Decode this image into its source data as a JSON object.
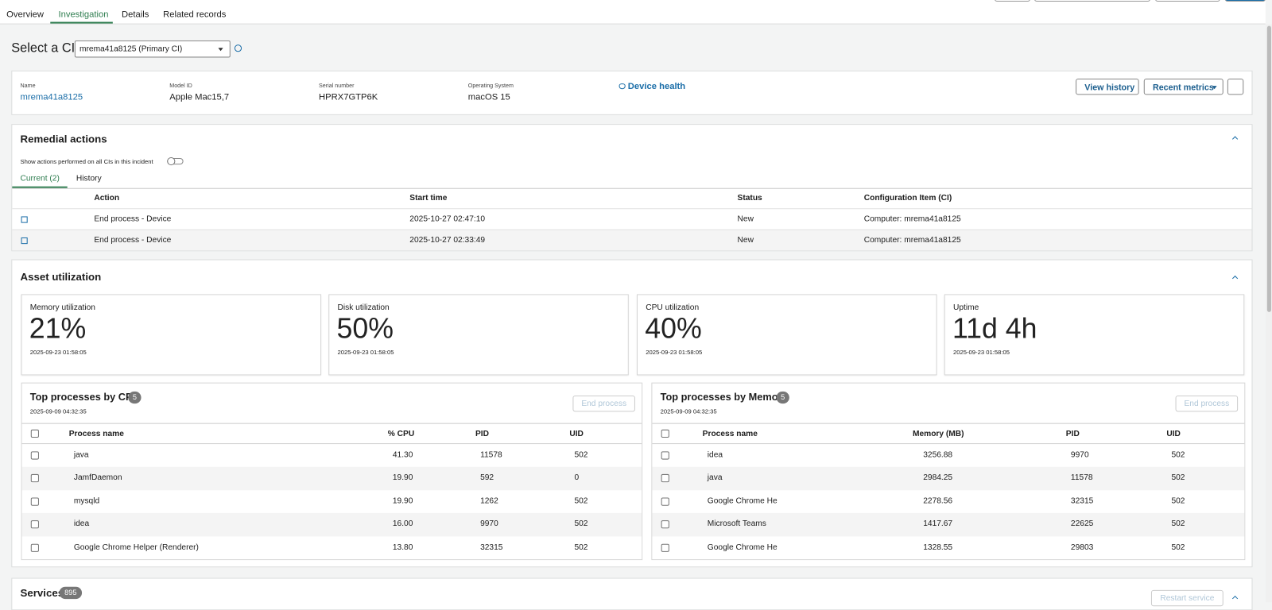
{
  "tabs": [
    "Overview",
    "Investigation",
    "Details",
    "Related records"
  ],
  "ci_select": {
    "label": "Select a CI",
    "value": "mrema41a8125 (Primary CI)"
  },
  "device": {
    "fields": [
      {
        "label": "Name",
        "value": "mrema41a8125"
      },
      {
        "label": "Model ID",
        "value": "Apple Mac15,7"
      },
      {
        "label": "Serial number",
        "value": "HPRX7GTP6K"
      },
      {
        "label": "Operating System",
        "value": "macOS 15"
      }
    ],
    "health_link": "Device health",
    "buttons": [
      "View history",
      "Recent metrics"
    ]
  },
  "remedial_actions": {
    "title": "Remedial actions",
    "toggle_label": "Show actions performed on all CIs in this incident",
    "tabs": [
      "Current (2)",
      "History"
    ],
    "columns": [
      "Action",
      "Start time",
      "Status",
      "Configuration Item (CI)"
    ],
    "rows": [
      [
        "End process - Device",
        "2025-10-27 02:47:10",
        "New",
        "Computer: mrema41a8125"
      ],
      [
        "End process - Device",
        "2025-10-27 02:33:49",
        "New",
        "Computer: mrema41a8125"
      ]
    ]
  },
  "asset_utilization": {
    "title": "Asset utilization",
    "cards": [
      {
        "label": "Memory utilization",
        "value": "21%",
        "time": "2025-09-23 01:58:05"
      },
      {
        "label": "Disk utilization",
        "value": "50%",
        "time": "2025-09-23 01:58:05"
      },
      {
        "label": "CPU utilization",
        "value": "40%",
        "time": "2025-09-23 01:58:05"
      },
      {
        "label": "Uptime",
        "value": "11d 4h",
        "time": "2025-09-23 01:58:05"
      }
    ]
  },
  "top_cpu": {
    "title": "Top processes by CPU",
    "count": "5",
    "date": "2025-09-09 04:32:35",
    "button": "End process",
    "columns": [
      "Process name",
      "% CPU",
      "PID",
      "UID"
    ],
    "rows": [
      [
        "java",
        "41.30",
        "11578",
        "502"
      ],
      [
        "JamfDaemon",
        "19.90",
        "592",
        "0"
      ],
      [
        "mysqld",
        "19.90",
        "1262",
        "502"
      ],
      [
        "idea",
        "16.00",
        "9970",
        "502"
      ],
      [
        "Google Chrome Helper (Renderer)",
        "13.80",
        "32315",
        "502"
      ]
    ]
  },
  "top_memory": {
    "title": "Top processes by Memory",
    "count": "5",
    "date": "2025-09-09 04:32:35",
    "button": "End process",
    "columns": [
      "Process name",
      "Memory (MB)",
      "PID",
      "UID"
    ],
    "rows": [
      [
        "idea",
        "3256.88",
        "9970",
        "502"
      ],
      [
        "java",
        "2984.25",
        "11578",
        "502"
      ],
      [
        "Google Chrome He",
        "2278.56",
        "32315",
        "502"
      ],
      [
        "Microsoft Teams",
        "1417.67",
        "22625",
        "502"
      ],
      [
        "Google Chrome He",
        "1328.55",
        "29803",
        "502"
      ]
    ]
  },
  "services": {
    "title": "Services",
    "count": "895",
    "button": "Restart service"
  }
}
